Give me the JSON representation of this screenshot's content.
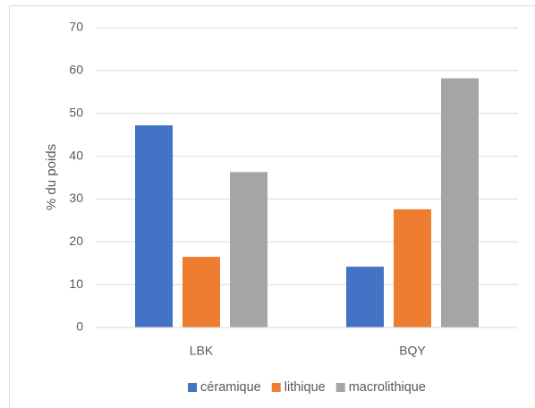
{
  "chart_data": {
    "type": "bar",
    "title": "",
    "xlabel": "",
    "ylabel": "% du poids",
    "categories": [
      "LBK",
      "BQY"
    ],
    "ylim": [
      0,
      70
    ],
    "yticks": [
      0,
      10,
      20,
      30,
      40,
      50,
      60,
      70
    ],
    "grid": true,
    "legend_position": "bottom",
    "series": [
      {
        "name": "céramique",
        "color": "#4472C4",
        "values": [
          47.2,
          14.2
        ]
      },
      {
        "name": "lithique",
        "color": "#ED7D31",
        "values": [
          16.5,
          27.6
        ]
      },
      {
        "name": "macrolithique",
        "color": "#A5A5A5",
        "values": [
          36.3,
          58.2
        ]
      }
    ]
  }
}
